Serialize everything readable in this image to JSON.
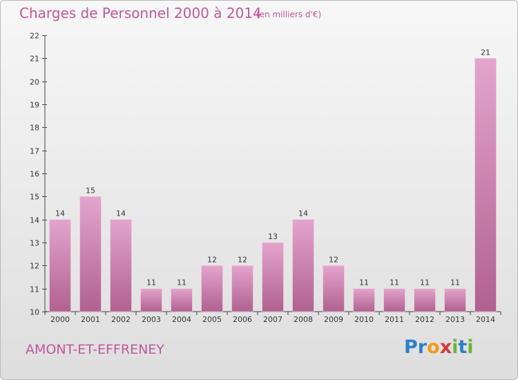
{
  "header": {
    "title": "Charges de Personnel 2000 à 2014",
    "subtitle": "(en milliers d'€)"
  },
  "footer": {
    "commune": "AMONT-ET-EFFRENEY",
    "logo": {
      "letters": [
        "P",
        "r",
        "o",
        "x",
        "i",
        "t",
        "i"
      ],
      "colors": [
        "#2e7fc8",
        "#2e7fc8",
        "#f29a1a",
        "#d23a3a",
        "#6bb43a",
        "#2e7fc8",
        "#6bb43a"
      ]
    }
  },
  "colors": {
    "bar_top": "#e3a5cd",
    "bar_bottom": "#b0618f",
    "text_accent": "#c0579c"
  },
  "chart_data": {
    "type": "bar",
    "title": "Charges de Personnel 2000 à 2014",
    "subtitle": "(en milliers d'€)",
    "xlabel": "",
    "ylabel": "",
    "categories": [
      "2000",
      "2001",
      "2002",
      "2003",
      "2004",
      "2005",
      "2006",
      "2007",
      "2008",
      "2009",
      "2010",
      "2011",
      "2012",
      "2013",
      "2014"
    ],
    "values": [
      14,
      15,
      14,
      11,
      11,
      12,
      12,
      13,
      14,
      12,
      11,
      11,
      11,
      11,
      21
    ],
    "ylim": [
      10,
      22
    ],
    "yticks": [
      10,
      11,
      12,
      13,
      14,
      15,
      16,
      17,
      18,
      19,
      20,
      21,
      22
    ],
    "grid": false,
    "legend": "none"
  }
}
